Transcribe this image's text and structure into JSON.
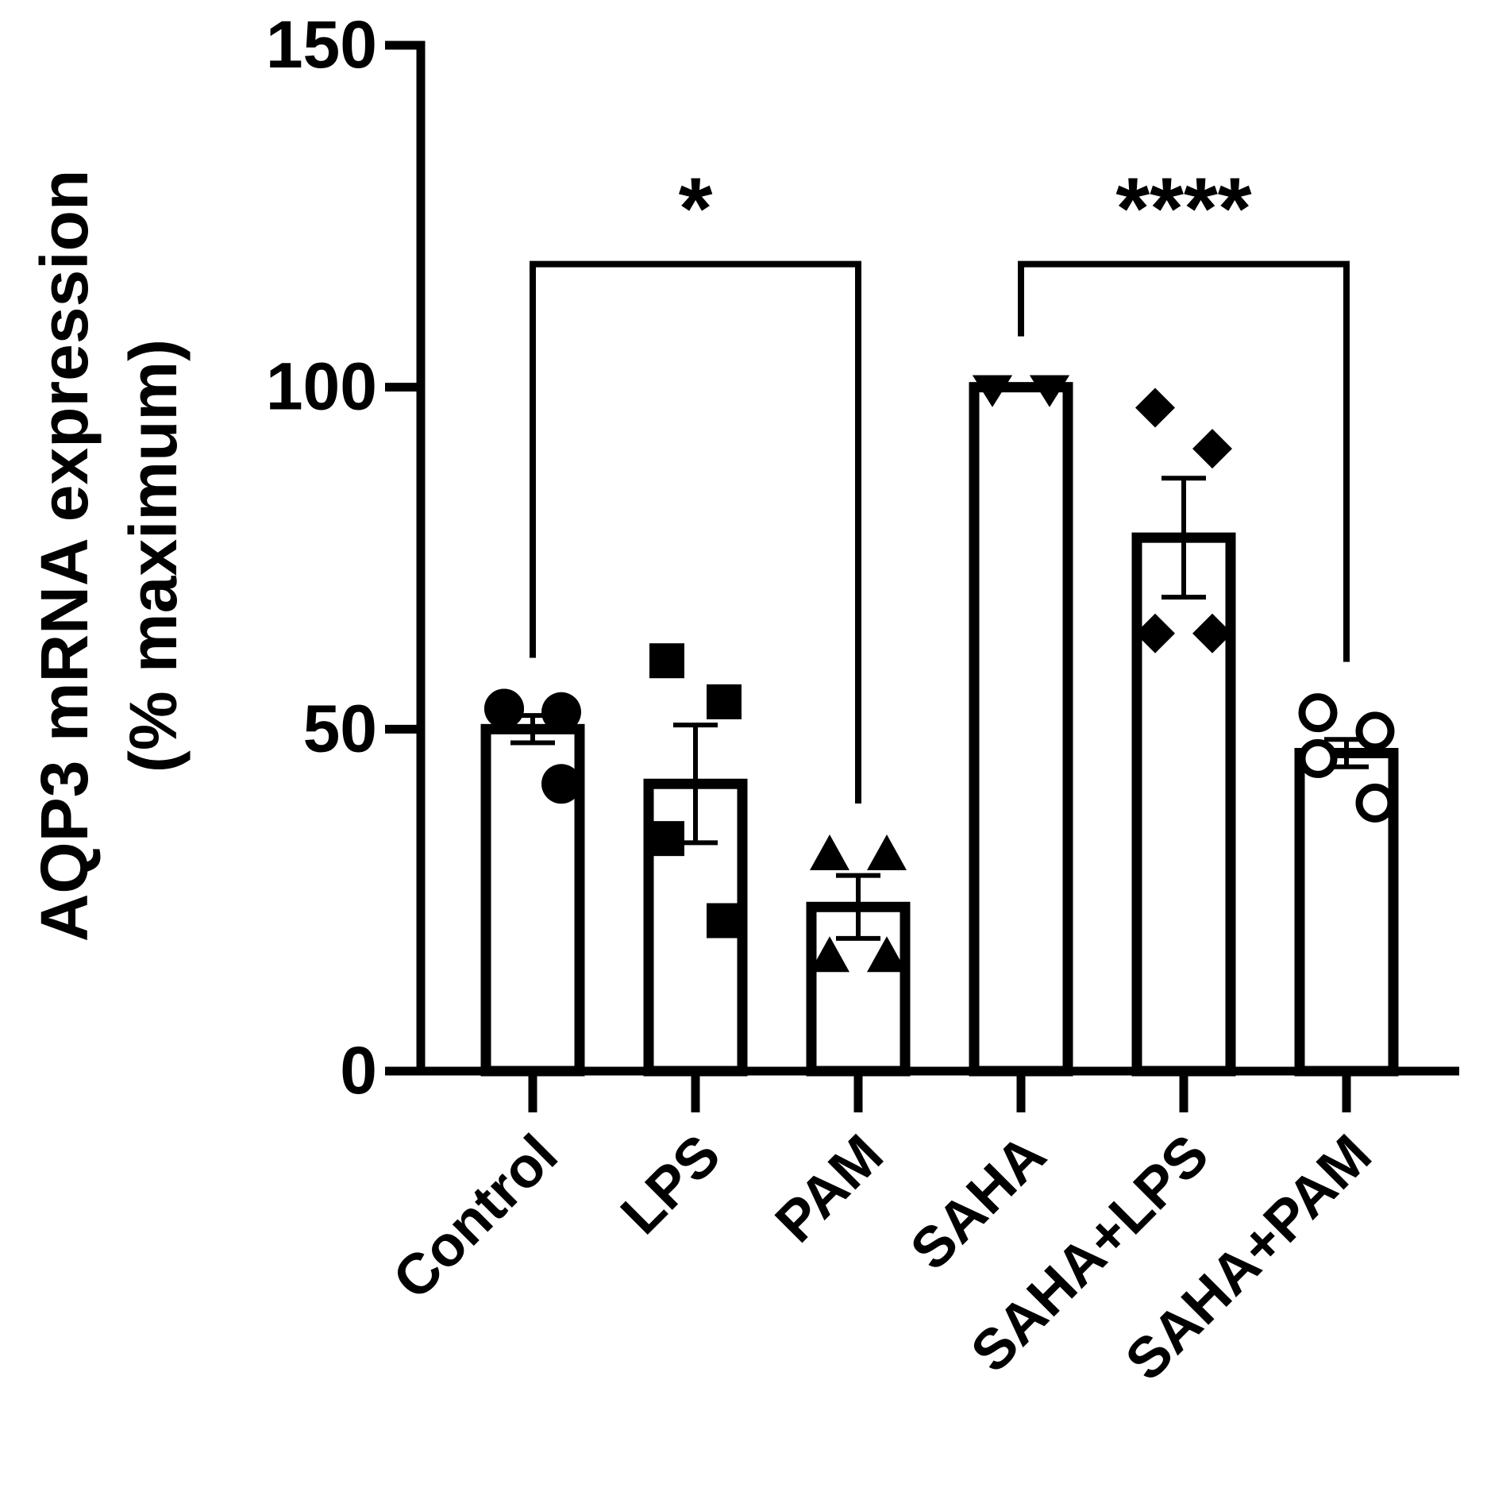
{
  "chart_data": {
    "type": "bar",
    "ylabel": [
      "AQP3 mRNA expression",
      "(% maximum)"
    ],
    "categories": [
      "Control",
      "LPS",
      "PAM",
      "SAHA",
      "SAHA+LPS",
      "SAHA+PAM"
    ],
    "values": [
      50,
      42,
      24,
      100,
      78,
      46.5
    ],
    "errors": [
      2,
      8.6,
      4.6,
      0,
      8.7,
      2
    ],
    "points": [
      [
        53,
        52.5,
        53,
        42
      ],
      [
        60,
        54,
        34,
        22
      ],
      [
        31.7,
        31.7,
        16.8,
        16.8
      ],
      [
        100,
        100,
        100,
        100
      ],
      [
        97,
        91,
        64,
        64
      ],
      [
        52.4,
        49.7,
        45.7,
        39.2
      ]
    ],
    "markers": [
      "circle",
      "square",
      "triangle",
      "triangle-down",
      "diamond",
      "circle-open"
    ],
    "color": "#000000",
    "ylim": [
      0,
      150
    ],
    "yticks": [
      0,
      50,
      100,
      150
    ],
    "brackets": [
      {
        "from": 0,
        "to": 2,
        "y": 118,
        "label": "*"
      },
      {
        "from": 3,
        "to": 5,
        "y": 118,
        "label": "****"
      }
    ]
  }
}
